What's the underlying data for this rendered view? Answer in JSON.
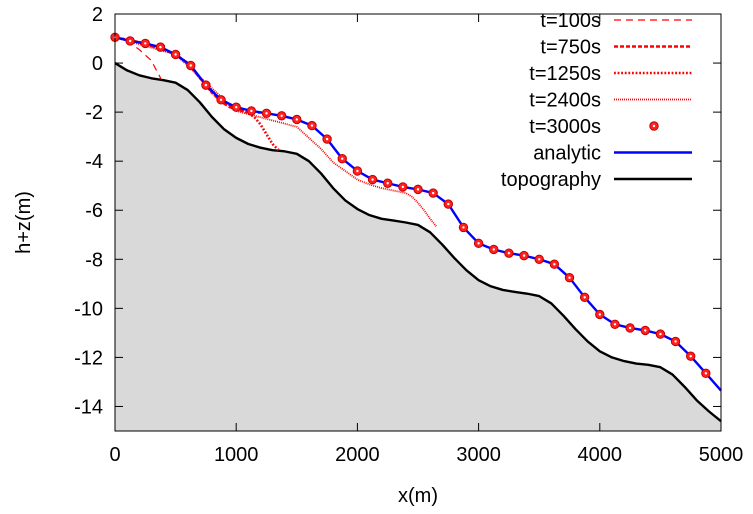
{
  "chart_data": {
    "type": "line",
    "title": "",
    "xlabel": "x(m)",
    "ylabel": "h+z(m)",
    "xlim": [
      0,
      5000
    ],
    "ylim": [
      -15,
      2
    ],
    "xticks": [
      0,
      1000,
      2000,
      3000,
      4000,
      5000
    ],
    "yticks": [
      2,
      0,
      -2,
      -4,
      -6,
      -8,
      -10,
      -12,
      -14
    ],
    "grid": false,
    "legend_position": "top-right",
    "colors": {
      "timesteps": "#ff0000",
      "marker_fill": "#ff2020",
      "analytic": "#0000ff",
      "topography": "#000000",
      "ground_fill": "#d9d9d9"
    },
    "series": [
      {
        "name": "t=100s",
        "style": "dashed-thin",
        "x": [
          0,
          100,
          200,
          300,
          380
        ],
        "y": [
          1.05,
          0.9,
          0.55,
          0.1,
          -0.65
        ]
      },
      {
        "name": "t=750s",
        "style": "dashed-thick",
        "x": [
          0,
          100,
          200,
          300,
          400,
          500,
          600,
          700,
          800,
          850,
          900,
          950,
          1000,
          1050,
          1100,
          1150,
          1200
        ],
        "y": [
          1.05,
          0.95,
          0.85,
          0.7,
          0.55,
          0.35,
          0.0,
          -0.6,
          -1.2,
          -1.45,
          -1.65,
          -1.8,
          -1.9,
          -1.95,
          -1.98,
          -2.0,
          -2.02
        ]
      },
      {
        "name": "t=1250s",
        "style": "dotted-thick",
        "x": [
          0,
          100,
          200,
          300,
          400,
          500,
          600,
          700,
          800,
          900,
          1000,
          1050,
          1100,
          1150,
          1200,
          1250,
          1300,
          1350
        ],
        "y": [
          1.05,
          0.95,
          0.85,
          0.7,
          0.55,
          0.35,
          0.0,
          -0.6,
          -1.2,
          -1.6,
          -1.85,
          -1.95,
          -2.05,
          -2.2,
          -2.5,
          -2.9,
          -3.3,
          -3.55
        ]
      },
      {
        "name": "t=2400s",
        "style": "dotted-fine",
        "x": [
          0,
          500,
          1000,
          1500,
          1700,
          1800,
          1900,
          2000,
          2100,
          2200,
          2300,
          2400,
          2450,
          2500,
          2550,
          2600,
          2650
        ],
        "y": [
          1.05,
          0.35,
          -1.95,
          -2.6,
          -3.5,
          -4.05,
          -4.4,
          -4.75,
          -4.95,
          -5.1,
          -5.2,
          -5.3,
          -5.45,
          -5.7,
          -6.0,
          -6.35,
          -6.65
        ]
      },
      {
        "name": "t=3000s",
        "style": "markers",
        "x": [
          0,
          125,
          250,
          375,
          500,
          625,
          750,
          875,
          1000,
          1125,
          1250,
          1375,
          1500,
          1625,
          1750,
          1875,
          2000,
          2125,
          2250,
          2375,
          2500,
          2625,
          2750,
          2875,
          3000,
          3125,
          3250,
          3375,
          3500,
          3625,
          3750,
          3875,
          4000,
          4125,
          4250,
          4375,
          4500,
          4625,
          4750,
          4875
        ],
        "y": [
          1.05,
          0.9,
          0.8,
          0.65,
          0.35,
          -0.1,
          -0.9,
          -1.5,
          -1.8,
          -1.95,
          -2.05,
          -2.15,
          -2.3,
          -2.55,
          -3.1,
          -3.9,
          -4.4,
          -4.75,
          -4.9,
          -5.05,
          -5.15,
          -5.3,
          -5.75,
          -6.7,
          -7.35,
          -7.6,
          -7.75,
          -7.85,
          -8.0,
          -8.2,
          -8.75,
          -9.55,
          -10.25,
          -10.65,
          -10.8,
          -10.9,
          -11.05,
          -11.35,
          -11.95,
          -12.65
        ]
      },
      {
        "name": "analytic",
        "style": "solid-blue",
        "x": [
          0,
          125,
          250,
          375,
          500,
          625,
          750,
          875,
          1000,
          1125,
          1250,
          1375,
          1500,
          1625,
          1750,
          1875,
          2000,
          2125,
          2250,
          2375,
          2500,
          2625,
          2750,
          2875,
          3000,
          3125,
          3250,
          3375,
          3500,
          3625,
          3750,
          3875,
          4000,
          4125,
          4250,
          4375,
          4500,
          4625,
          4750,
          4875,
          5000
        ],
        "y": [
          1.05,
          0.9,
          0.8,
          0.65,
          0.35,
          -0.1,
          -0.9,
          -1.5,
          -1.8,
          -1.95,
          -2.05,
          -2.15,
          -2.3,
          -2.55,
          -3.1,
          -3.9,
          -4.4,
          -4.75,
          -4.9,
          -5.05,
          -5.15,
          -5.3,
          -5.75,
          -6.7,
          -7.35,
          -7.6,
          -7.75,
          -7.85,
          -8.0,
          -8.2,
          -8.75,
          -9.55,
          -10.25,
          -10.65,
          -10.8,
          -10.9,
          -11.05,
          -11.35,
          -11.95,
          -12.65,
          -13.35
        ]
      },
      {
        "name": "topography",
        "style": "solid-black",
        "x": [
          0,
          100,
          200,
          300,
          400,
          500,
          600,
          700,
          800,
          900,
          1000,
          1100,
          1200,
          1300,
          1400,
          1500,
          1600,
          1700,
          1800,
          1900,
          2000,
          2100,
          2200,
          2300,
          2400,
          2500,
          2600,
          2700,
          2800,
          2900,
          3000,
          3100,
          3200,
          3300,
          3400,
          3500,
          3600,
          3700,
          3800,
          3900,
          4000,
          4100,
          4200,
          4300,
          4400,
          4500,
          4600,
          4700,
          4800,
          4900,
          5000
        ],
        "y": [
          0.0,
          -0.3,
          -0.5,
          -0.62,
          -0.7,
          -0.8,
          -1.1,
          -1.6,
          -2.2,
          -2.7,
          -3.05,
          -3.3,
          -3.45,
          -3.55,
          -3.6,
          -3.7,
          -4.0,
          -4.5,
          -5.1,
          -5.6,
          -5.95,
          -6.2,
          -6.35,
          -6.42,
          -6.5,
          -6.6,
          -6.9,
          -7.4,
          -7.95,
          -8.45,
          -8.85,
          -9.1,
          -9.25,
          -9.33,
          -9.4,
          -9.5,
          -9.8,
          -10.3,
          -10.85,
          -11.35,
          -11.75,
          -12.0,
          -12.15,
          -12.25,
          -12.3,
          -12.4,
          -12.7,
          -13.2,
          -13.75,
          -14.2,
          -14.6
        ]
      }
    ]
  }
}
